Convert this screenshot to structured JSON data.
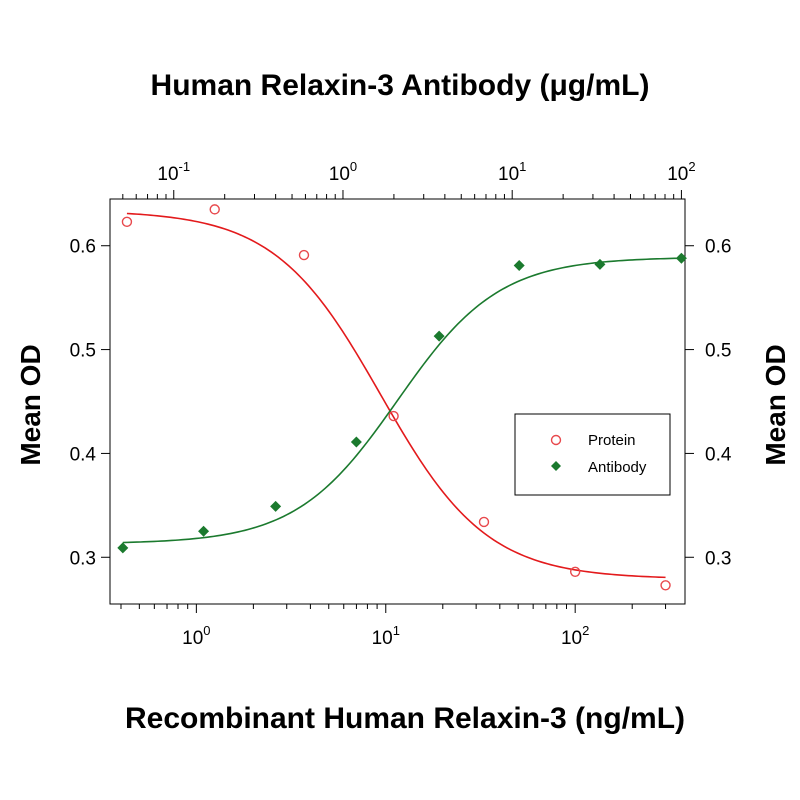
{
  "chart_data": {
    "type": "scatter",
    "title": "Human Relaxin-3 Antibody (μg/mL)",
    "xlabel": "Recombinant Human Relaxin-3 (ng/mL)",
    "ylabel": "Mean OD",
    "ylabel_right": "Mean OD",
    "x_scale": "log",
    "xlim": [
      0.35,
      380
    ],
    "ylim": [
      0.255,
      0.645
    ],
    "yticks": [
      "0.3",
      "0.4",
      "0.5",
      "0.6"
    ],
    "xticks_bottom": [
      {
        "base": "10",
        "exp": "0",
        "value": 1
      },
      {
        "base": "10",
        "exp": "1",
        "value": 10
      },
      {
        "base": "10",
        "exp": "2",
        "value": 100
      }
    ],
    "top_axis": {
      "scale": "log",
      "xlim": [
        0.042,
        105
      ],
      "xticks": [
        {
          "base": "10",
          "exp": "-1",
          "value": 0.1
        },
        {
          "base": "10",
          "exp": "0",
          "value": 1
        },
        {
          "base": "10",
          "exp": "1",
          "value": 10
        },
        {
          "base": "10",
          "exp": "2",
          "value": 100
        }
      ]
    },
    "legend": {
      "position": "right",
      "entries": [
        "Protein",
        "Antibody"
      ]
    },
    "series": [
      {
        "name": "Protein",
        "axis": "bottom",
        "color": "#e8484c",
        "curve_color": "#e31a1c",
        "marker": "open-circle",
        "points": [
          {
            "x": 0.43,
            "y": 0.623
          },
          {
            "x": 1.25,
            "y": 0.635
          },
          {
            "x": 3.7,
            "y": 0.591
          },
          {
            "x": 11.0,
            "y": 0.436
          },
          {
            "x": 33.0,
            "y": 0.334
          },
          {
            "x": 100.0,
            "y": 0.286
          },
          {
            "x": 300.0,
            "y": 0.273
          }
        ],
        "fit": {
          "top": 0.634,
          "bottom": 0.279,
          "ec50": 9.4,
          "hill": 1.55
        }
      },
      {
        "name": "Antibody",
        "axis": "top",
        "color": "#1b7a2e",
        "curve_color": "#1b7a2e",
        "marker": "filled-diamond",
        "points": [
          {
            "x": 0.05,
            "y": 0.309
          },
          {
            "x": 0.15,
            "y": 0.325
          },
          {
            "x": 0.4,
            "y": 0.349
          },
          {
            "x": 1.2,
            "y": 0.411
          },
          {
            "x": 3.7,
            "y": 0.513
          },
          {
            "x": 11.0,
            "y": 0.581
          },
          {
            "x": 33.0,
            "y": 0.582
          },
          {
            "x": 100.0,
            "y": 0.588
          }
        ],
        "fit": {
          "top": 0.589,
          "bottom": 0.313,
          "ec50": 2.1,
          "hill": 1.45
        }
      }
    ]
  }
}
